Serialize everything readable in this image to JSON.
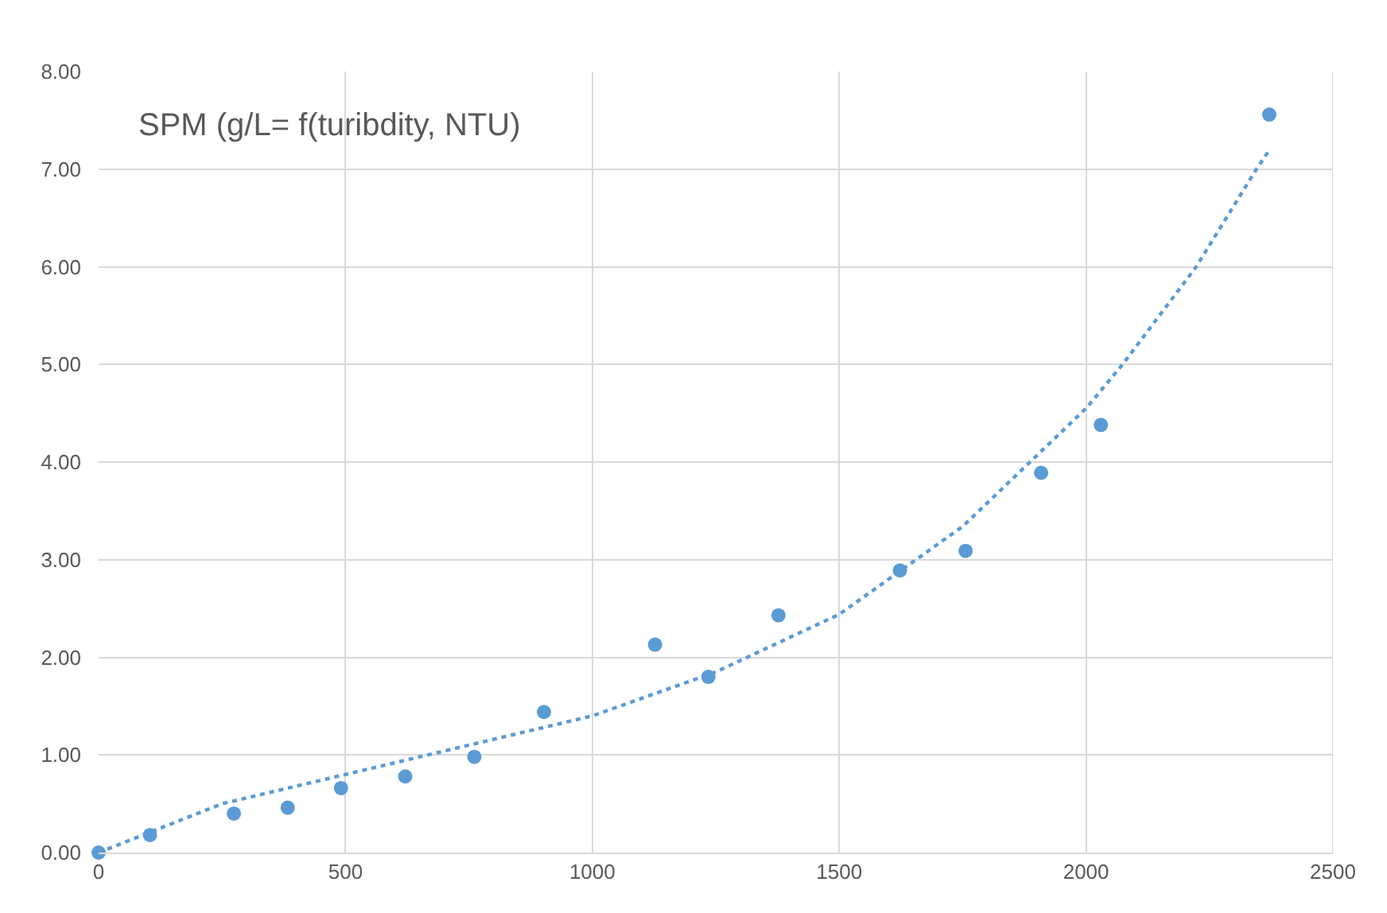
{
  "chart_data": {
    "type": "scatter",
    "title": "SPM (g/L= f(turibdity, NTU)",
    "xlim": [
      0,
      2500
    ],
    "xticks": [
      0,
      500,
      1000,
      1500,
      2000,
      2500
    ],
    "ylim": [
      0,
      8
    ],
    "yticks": [
      {
        "value": 0,
        "label": "0.00"
      },
      {
        "value": 1,
        "label": "1.00"
      },
      {
        "value": 2,
        "label": "2.00"
      },
      {
        "value": 3,
        "label": "3.00"
      },
      {
        "value": 4,
        "label": "4.00"
      },
      {
        "value": 5,
        "label": "5.00"
      },
      {
        "value": 6,
        "label": "6.00"
      },
      {
        "value": 7,
        "label": "7.00"
      },
      {
        "value": 8,
        "label": "8.00"
      }
    ],
    "grid": true,
    "series": [
      {
        "marker": "circle",
        "color": "#5b9bd5",
        "x": [
          0,
          104,
          274,
          383,
          491,
          621,
          761,
          902,
          1127,
          1235,
          1377,
          1623,
          1756,
          1909,
          2030,
          2371
        ],
        "values": [
          0,
          0.18,
          0.4,
          0.46,
          0.66,
          0.78,
          0.98,
          1.44,
          2.13,
          1.8,
          2.43,
          2.89,
          3.09,
          3.89,
          4.38,
          7.56
        ]
      },
      {
        "type": "line",
        "marker": "none",
        "line_style": "dotted",
        "color": "#5b9bd5",
        "x": [
          0,
          250,
          500,
          750,
          1000,
          1250,
          1500,
          1750,
          2000,
          2074,
          2223,
          2345,
          2373
        ],
        "values": [
          0,
          0.5,
          0.8,
          1.1,
          1.4,
          1.85,
          2.44,
          3.34,
          4.55,
          5.0,
          6.0,
          7.0,
          7.21
        ]
      }
    ]
  }
}
